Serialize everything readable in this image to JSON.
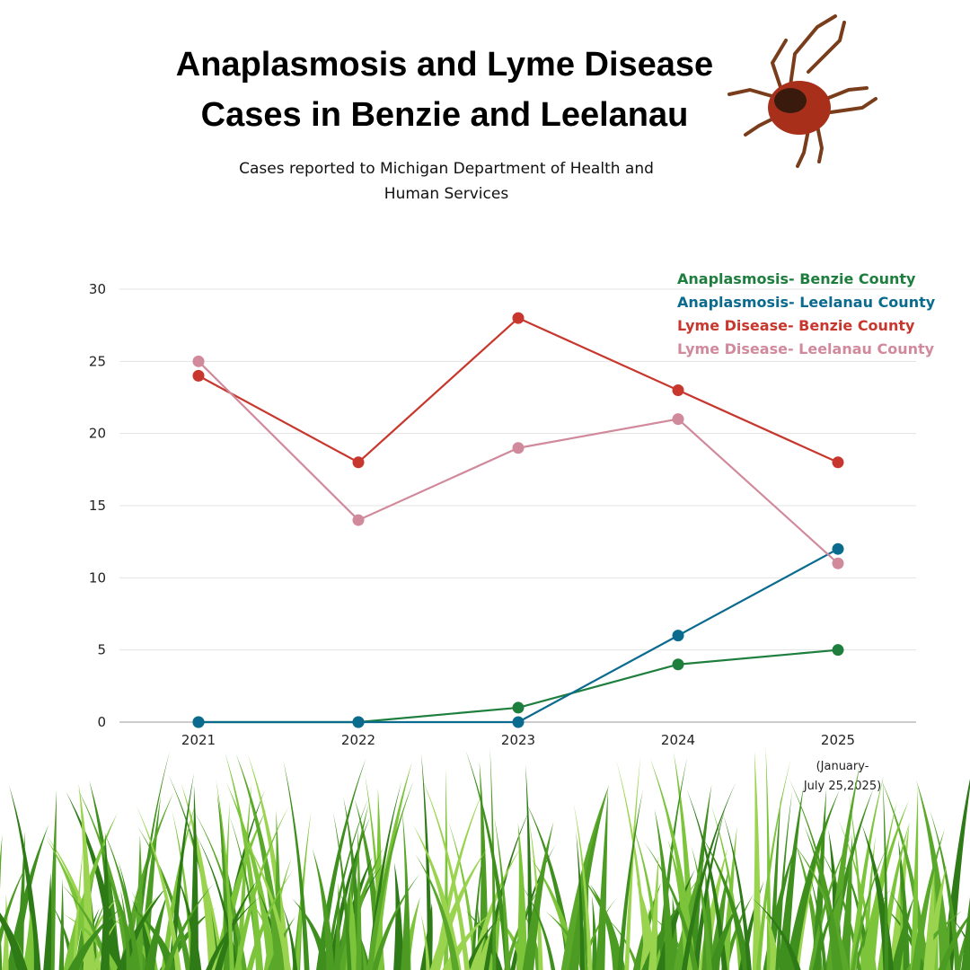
{
  "chart_data": {
    "type": "line",
    "title": "Anaplasmosis and Lyme Disease Cases in Benzie and Leelanau",
    "subtitle": "Cases reported to Michigan Department of Health and Human Services",
    "categories": [
      "2021",
      "2022",
      "2023",
      "2024",
      "2025"
    ],
    "category_note": "(January- July 25,2025)",
    "ylim": [
      0,
      30
    ],
    "yticks": [
      0,
      5,
      10,
      15,
      20,
      25,
      30
    ],
    "grid": true,
    "legend_position": "top-right",
    "series": [
      {
        "name": "Anaplasmosis- Benzie County",
        "color": "#1e7e3e",
        "values": [
          0,
          0,
          1,
          4,
          5
        ]
      },
      {
        "name": "Anaplasmosis- Leelanau County",
        "color": "#0b6b8e",
        "values": [
          0,
          0,
          0,
          6,
          12
        ]
      },
      {
        "name": "Lyme Disease- Benzie County",
        "color": "#c8372d",
        "values": [
          24,
          18,
          28,
          23,
          18
        ]
      },
      {
        "name": "Lyme Disease- Leelanau County",
        "color": "#d08a9c",
        "values": [
          25,
          14,
          19,
          21,
          11
        ]
      }
    ]
  },
  "decorations": {
    "top_right_image": "tick-icon",
    "bottom_image": "grass"
  }
}
